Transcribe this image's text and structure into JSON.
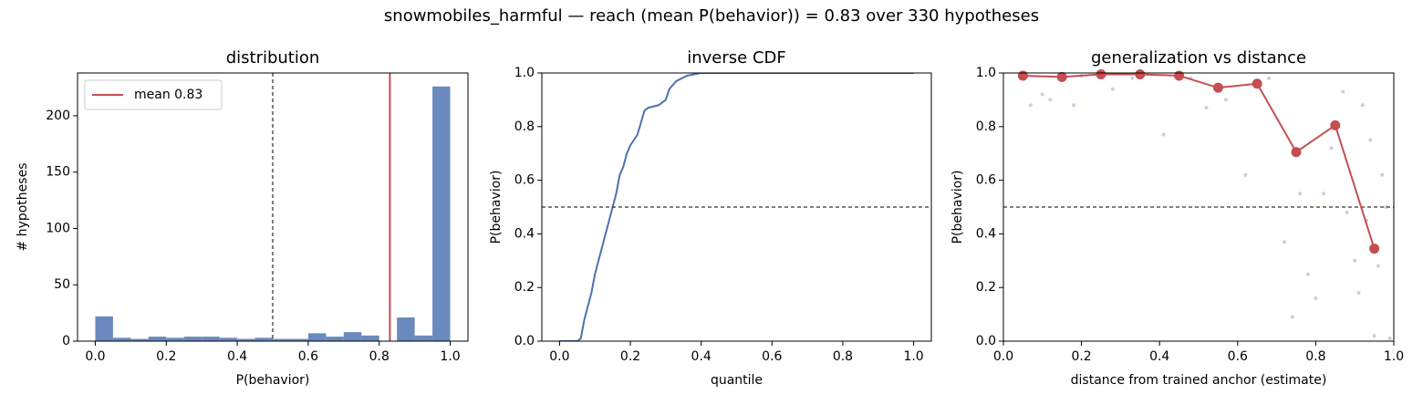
{
  "title": "snowmobiles_harmful  —  reach (mean P(behavior)) = 0.83  over 330 hypotheses",
  "chart_data": [
    {
      "type": "histogram",
      "title": "distribution",
      "x_label": "P(behavior)",
      "y_label": "# hypotheses",
      "bins": [
        0,
        0.05,
        0.1,
        0.15,
        0.2,
        0.25,
        0.3,
        0.35,
        0.4,
        0.45,
        0.5,
        0.55,
        0.6,
        0.65,
        0.7,
        0.75,
        0.8,
        0.85,
        0.9,
        0.95,
        1.0
      ],
      "values": [
        22,
        3,
        2,
        4,
        3,
        4,
        4,
        3,
        2,
        3,
        2,
        2,
        7,
        4,
        8,
        5,
        0,
        21,
        5,
        226
      ],
      "color": "#6a89bc",
      "mean": 0.83,
      "mean_color": "#c44e52",
      "mean_label": "mean 0.83",
      "legend": "upper left",
      "reference_x": 0.5,
      "xlim": [
        -0.05,
        1.05
      ],
      "ylim": [
        0,
        238
      ],
      "xticks": [
        {
          "value": 0,
          "label": "0.0"
        },
        {
          "value": 0.2,
          "label": "0.2"
        },
        {
          "value": 0.4,
          "label": "0.4"
        },
        {
          "value": 0.6,
          "label": "0.6"
        },
        {
          "value": 0.8,
          "label": "0.8"
        },
        {
          "value": 1,
          "label": "1.0"
        }
      ],
      "yticks": [
        0,
        50,
        100,
        150,
        200
      ]
    },
    {
      "type": "line",
      "title": "inverse CDF",
      "x_label": "quantile",
      "y_label": "P(behavior)",
      "x": [
        0,
        0.05,
        0.06,
        0.07,
        0.08,
        0.09,
        0.1,
        0.11,
        0.12,
        0.13,
        0.14,
        0.15,
        0.16,
        0.17,
        0.18,
        0.19,
        0.2,
        0.21,
        0.22,
        0.24,
        0.25,
        0.28,
        0.3,
        0.31,
        0.33,
        0.36,
        0.4,
        1.0
      ],
      "values": [
        0,
        0,
        0.01,
        0.08,
        0.13,
        0.18,
        0.25,
        0.3,
        0.35,
        0.4,
        0.45,
        0.5,
        0.55,
        0.62,
        0.65,
        0.7,
        0.73,
        0.75,
        0.77,
        0.86,
        0.87,
        0.88,
        0.9,
        0.94,
        0.97,
        0.99,
        1.0,
        1.0
      ],
      "color": "#4c72b0",
      "reference_y": 0.5,
      "xlim": [
        -0.05,
        1.05
      ],
      "ylim": [
        0,
        1
      ],
      "xticks": [
        {
          "value": 0,
          "label": "0.0"
        },
        {
          "value": 0.2,
          "label": "0.2"
        },
        {
          "value": 0.4,
          "label": "0.4"
        },
        {
          "value": 0.6,
          "label": "0.6"
        },
        {
          "value": 0.8,
          "label": "0.8"
        },
        {
          "value": 1,
          "label": "1.0"
        }
      ],
      "yticks": [
        {
          "value": 0,
          "label": "0.0"
        },
        {
          "value": 0.2,
          "label": "0.2"
        },
        {
          "value": 0.4,
          "label": "0.4"
        },
        {
          "value": 0.6,
          "label": "0.6"
        },
        {
          "value": 0.8,
          "label": "0.8"
        },
        {
          "value": 1,
          "label": "1.0"
        }
      ]
    },
    {
      "type": "scatter_line",
      "title": "generalization vs distance",
      "x_label": "distance from trained anchor (estimate)",
      "y_label": "P(behavior)",
      "points": {
        "color": "#c8d0e8",
        "x": [
          0.07,
          0.1,
          0.12,
          0.18,
          0.2,
          0.28,
          0.33,
          0.41,
          0.48,
          0.52,
          0.57,
          0.62,
          0.68,
          0.72,
          0.74,
          0.76,
          0.78,
          0.8,
          0.82,
          0.84,
          0.87,
          0.88,
          0.9,
          0.91,
          0.92,
          0.93,
          0.94,
          0.95,
          0.96,
          0.97,
          0.98,
          0.99
        ],
        "values": [
          0.88,
          0.92,
          0.9,
          0.88,
          0.99,
          0.94,
          0.98,
          0.77,
          0.98,
          0.87,
          0.9,
          0.62,
          0.98,
          0.37,
          0.09,
          0.55,
          0.25,
          0.16,
          0.55,
          0.72,
          0.93,
          0.48,
          0.3,
          0.18,
          0.88,
          0.45,
          0.75,
          0.02,
          0.28,
          0.62,
          0.5,
          0.01
        ]
      },
      "series": {
        "color": "#c44e52",
        "x": [
          0.05,
          0.15,
          0.25,
          0.35,
          0.45,
          0.55,
          0.65,
          0.75,
          0.85,
          0.95
        ],
        "values": [
          0.99,
          0.985,
          0.995,
          0.995,
          0.99,
          0.945,
          0.96,
          0.705,
          0.805,
          0.345
        ]
      },
      "reference_y": 0.5,
      "xlim": [
        0,
        1
      ],
      "ylim": [
        0,
        1
      ],
      "xticks": [
        {
          "value": 0,
          "label": "0.0"
        },
        {
          "value": 0.2,
          "label": "0.2"
        },
        {
          "value": 0.4,
          "label": "0.4"
        },
        {
          "value": 0.6,
          "label": "0.6"
        },
        {
          "value": 0.8,
          "label": "0.8"
        },
        {
          "value": 1,
          "label": "1.0"
        }
      ],
      "yticks": [
        {
          "value": 0,
          "label": "0.0"
        },
        {
          "value": 0.2,
          "label": "0.2"
        },
        {
          "value": 0.4,
          "label": "0.4"
        },
        {
          "value": 0.6,
          "label": "0.6"
        },
        {
          "value": 0.8,
          "label": "0.8"
        },
        {
          "value": 1,
          "label": "1.0"
        }
      ]
    }
  ]
}
